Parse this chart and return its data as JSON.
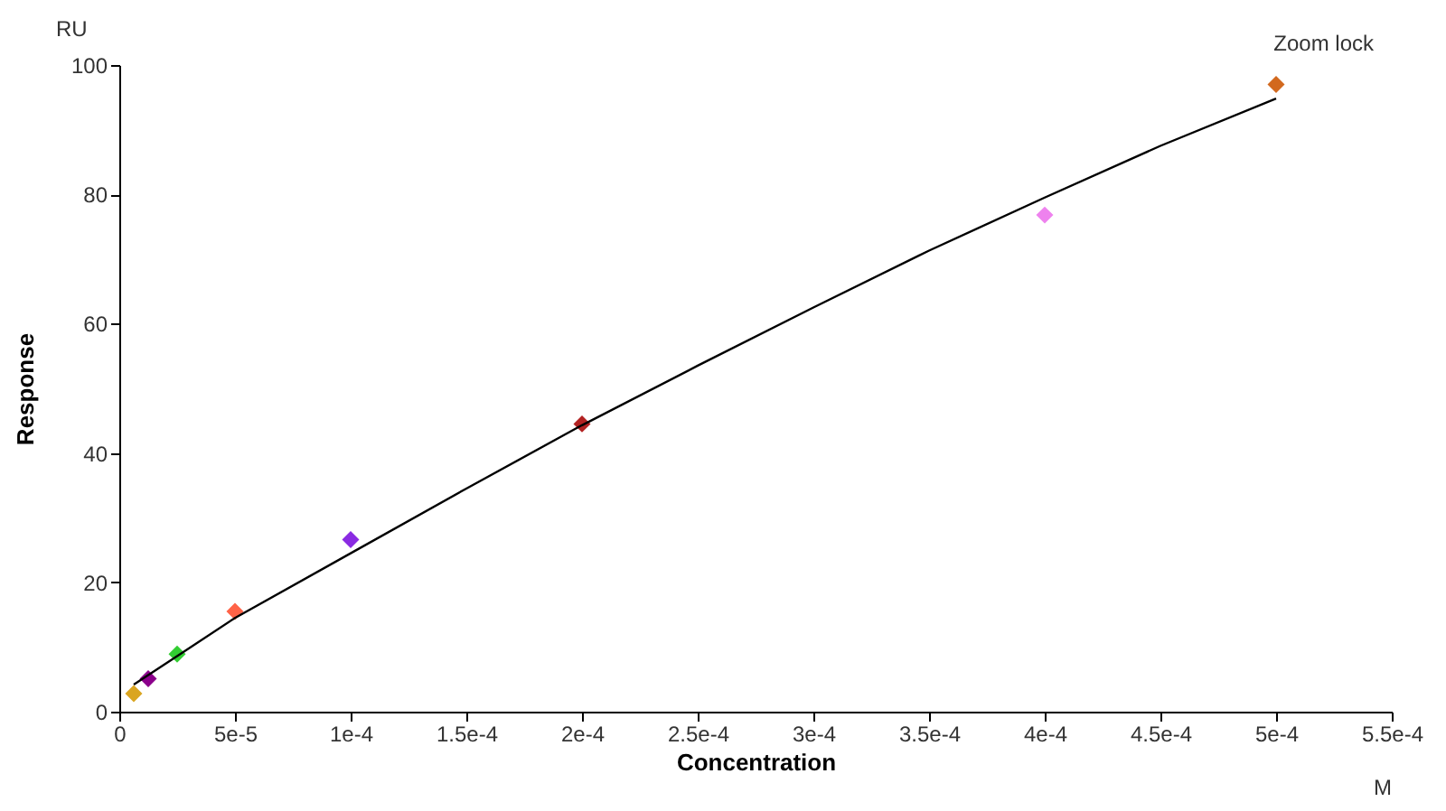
{
  "chart_data": {
    "type": "scatter",
    "xlabel": "Concentration",
    "ylabel": "Response",
    "annotations": [
      "RU",
      "M",
      "Zoom lock"
    ],
    "series": [
      {
        "type": "scatter",
        "marker": "diamond",
        "x": [
          6.25e-06,
          1.25e-05,
          2.5e-05,
          5e-05,
          0.0001,
          0.0002,
          0.0004,
          0.0005
        ],
        "values": [
          2.8,
          5.1,
          8.9,
          15.5,
          26.6,
          44.5,
          76.8,
          97.0
        ],
        "colors": [
          "#daa520",
          "#8b008b",
          "#32cd32",
          "#ff6347",
          "#8a2be2",
          "#b22222",
          "#ee82ee",
          "#d2691e"
        ]
      },
      {
        "type": "line",
        "color": "#000000",
        "line_style": "solid",
        "x": [
          6.25e-06,
          2.5e-05,
          5e-05,
          0.0001,
          0.00015,
          0.0002,
          0.00025,
          0.0003,
          0.00035,
          0.0004,
          0.00045,
          0.0005
        ],
        "values": [
          4.2,
          8.6,
          14.5,
          24.5,
          34.5,
          44.3,
          53.5,
          62.5,
          71.3,
          79.5,
          87.5,
          94.8
        ]
      }
    ],
    "xlim": [
      0,
      0.00055
    ],
    "xticks": [
      0,
      {
        "value": 5e-05,
        "label": "5e-5"
      },
      {
        "value": 0.0001,
        "label": "1e-4"
      },
      {
        "value": 0.00015,
        "label": "1.5e-4"
      },
      {
        "value": 0.0002,
        "label": "2e-4"
      },
      {
        "value": 0.00025,
        "label": "2.5e-4"
      },
      {
        "value": 0.0003,
        "label": "3e-4"
      },
      {
        "value": 0.00035,
        "label": "3.5e-4"
      },
      {
        "value": 0.0004,
        "label": "4e-4"
      },
      {
        "value": 0.00045,
        "label": "4.5e-4"
      },
      {
        "value": 0.0005,
        "label": "5e-4"
      },
      {
        "value": 0.00055,
        "label": "5.5e-4"
      }
    ],
    "ylim": [
      0,
      100
    ],
    "yticks": [
      0,
      20,
      40,
      60,
      80,
      100
    ],
    "grid": false,
    "legend": false
  }
}
